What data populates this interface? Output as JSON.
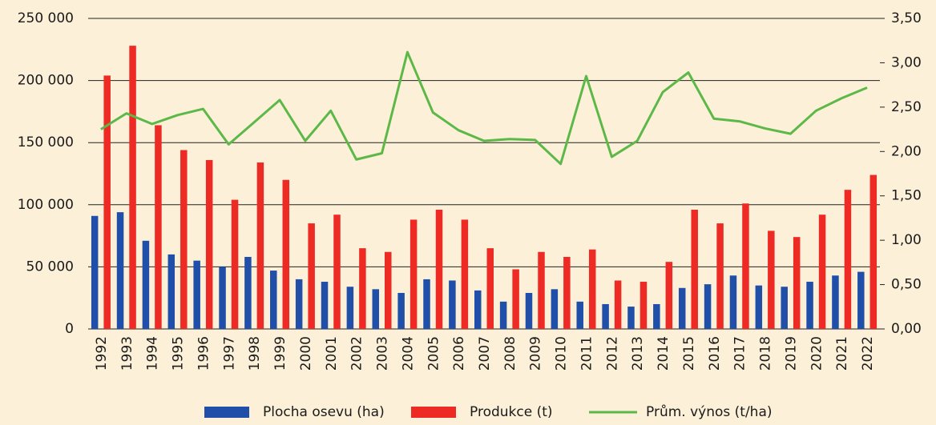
{
  "chart_data": {
    "type": "bar_line",
    "categories": [
      "1992",
      "1993",
      "1994",
      "1995",
      "1996",
      "1997",
      "1998",
      "1999",
      "2000",
      "2001",
      "2002",
      "2003",
      "2004",
      "2005",
      "2006",
      "2007",
      "2008",
      "2009",
      "2010",
      "2011",
      "2012",
      "2013",
      "2014",
      "2015",
      "2016",
      "2017",
      "2018",
      "2019",
      "2020",
      "2021",
      "2022"
    ],
    "series": [
      {
        "name": "Plocha osevu (ha)",
        "color": "#1f4fa8",
        "type": "bar",
        "values": [
          91000,
          94000,
          71000,
          60000,
          55000,
          50000,
          58000,
          47000,
          40000,
          38000,
          34000,
          32000,
          29000,
          40000,
          39000,
          31000,
          22000,
          29000,
          32000,
          22000,
          20000,
          18000,
          20000,
          33000,
          36000,
          43000,
          35000,
          34000,
          38000,
          43000,
          46000
        ]
      },
      {
        "name": "Produkce (t)",
        "color": "#ee2a24",
        "type": "bar",
        "values": [
          204000,
          228000,
          164000,
          144000,
          136000,
          104000,
          134000,
          120000,
          85000,
          92000,
          65000,
          62000,
          88000,
          96000,
          88000,
          65000,
          48000,
          62000,
          58000,
          64000,
          39000,
          38000,
          54000,
          96000,
          85000,
          101000,
          79000,
          74000,
          92000,
          112000,
          124000
        ]
      },
      {
        "name": "Prům. výnos (t/ha)",
        "color": "#5cb848",
        "type": "line",
        "axis": "y2",
        "values": [
          2.25,
          2.43,
          2.31,
          2.41,
          2.48,
          2.08,
          2.33,
          2.58,
          2.12,
          2.46,
          1.91,
          1.98,
          3.12,
          2.44,
          2.24,
          2.12,
          2.14,
          2.13,
          1.86,
          2.85,
          1.94,
          2.12,
          2.67,
          2.89,
          2.37,
          2.34,
          2.26,
          2.2,
          2.46,
          2.6,
          2.72
        ]
      }
    ],
    "ylim": [
      0,
      250000
    ],
    "yticks": [
      0,
      {
        "value": 50000,
        "label": "50 000"
      },
      {
        "value": 100000,
        "label": "100 000"
      },
      {
        "value": 150000,
        "label": "150 000"
      },
      {
        "value": 200000,
        "label": "200 000"
      },
      {
        "value": 250000,
        "label": "250 000"
      }
    ],
    "y2lim": [
      0,
      3.5
    ],
    "y2ticks": [
      {
        "value": 0,
        "label": "0,00"
      },
      {
        "value": 0.5,
        "label": "0,50"
      },
      {
        "value": 1,
        "label": "1,00"
      },
      {
        "value": 1.5,
        "label": "1,50"
      },
      {
        "value": 2,
        "label": "2,00"
      },
      {
        "value": 2.5,
        "label": "2,50"
      },
      {
        "value": 3,
        "label": "3,00"
      },
      {
        "value": 3.5,
        "label": "3,50"
      }
    ],
    "grid": true,
    "legend": "bottom"
  }
}
